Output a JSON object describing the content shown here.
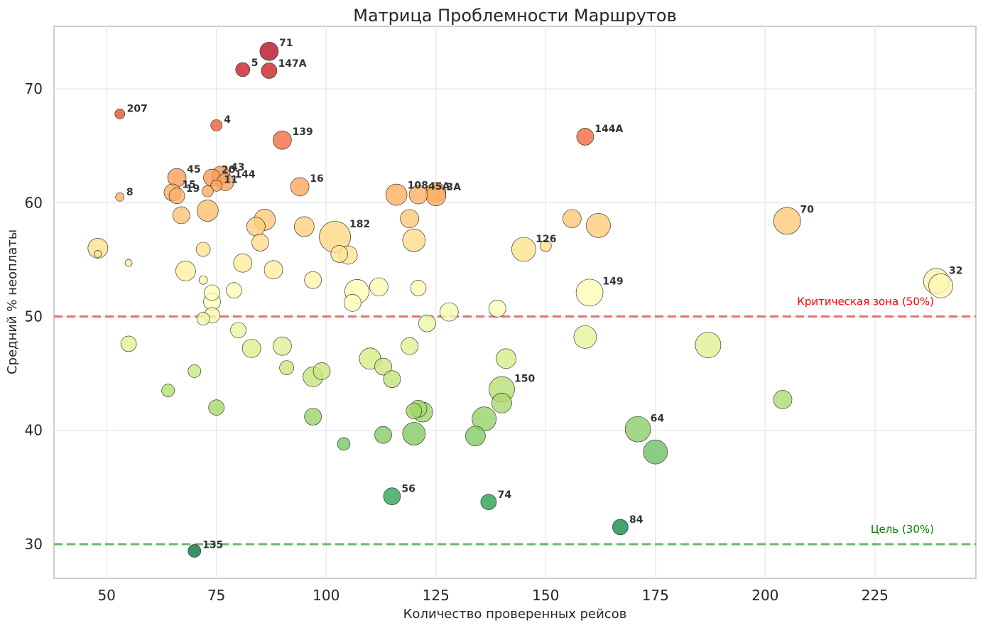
{
  "chart_data": {
    "type": "scatter",
    "title": "Матрица Проблемности Маршрутов",
    "xlabel": "Количество проверенных рейсов",
    "ylabel": "Средний % неоплаты",
    "xlim": [
      38,
      248
    ],
    "ylim": [
      27,
      75.5
    ],
    "xticks": [
      50,
      75,
      100,
      125,
      150,
      175,
      200,
      225
    ],
    "yticks": [
      30,
      40,
      50,
      60,
      70
    ],
    "grid": true,
    "colormap": "RdYlGn_r",
    "color_range": [
      28,
      75
    ],
    "reference_lines": [
      {
        "y": 50,
        "label": "Критическая зона (50%)",
        "color": "#e8585c"
      },
      {
        "y": 30,
        "label": "Цель (30%)",
        "color": "#4caf50"
      }
    ],
    "label_color_critical": "#ff0000",
    "label_color_target": "#008000",
    "points": [
      {
        "x": 87,
        "y": 73.3,
        "s": 13,
        "label": "71"
      },
      {
        "x": 81,
        "y": 71.7,
        "s": 10,
        "label": "5"
      },
      {
        "x": 87,
        "y": 71.6,
        "s": 11,
        "label": "147A"
      },
      {
        "x": 53,
        "y": 67.8,
        "s": 7,
        "label": "207"
      },
      {
        "x": 75,
        "y": 66.8,
        "s": 8,
        "label": "4"
      },
      {
        "x": 90,
        "y": 65.5,
        "s": 13,
        "label": "139"
      },
      {
        "x": 159,
        "y": 65.8,
        "s": 12,
        "label": "144A"
      },
      {
        "x": 66,
        "y": 62.2,
        "s": 13,
        "label": "45"
      },
      {
        "x": 74,
        "y": 62.2,
        "s": 12,
        "label": "20"
      },
      {
        "x": 76,
        "y": 62.4,
        "s": 13,
        "label": "43"
      },
      {
        "x": 77,
        "y": 61.8,
        "s": 12,
        "label": "144"
      },
      {
        "x": 75,
        "y": 61.5,
        "s": 8,
        "label": "11"
      },
      {
        "x": 73,
        "y": 61.0,
        "s": 8,
        "label": ""
      },
      {
        "x": 94,
        "y": 61.4,
        "s": 13,
        "label": "16"
      },
      {
        "x": 53,
        "y": 60.5,
        "s": 6,
        "label": "8"
      },
      {
        "x": 65,
        "y": 60.9,
        "s": 12,
        "label": "15"
      },
      {
        "x": 66,
        "y": 60.6,
        "s": 11,
        "label": "19"
      },
      {
        "x": 116,
        "y": 60.7,
        "s": 15,
        "label": "108"
      },
      {
        "x": 121,
        "y": 60.7,
        "s": 13,
        "label": "45A"
      },
      {
        "x": 125,
        "y": 60.9,
        "s": 14,
        "label": ""
      },
      {
        "x": 125,
        "y": 60.6,
        "s": 14,
        "label": "3A"
      },
      {
        "x": 67,
        "y": 58.9,
        "s": 12,
        "label": ""
      },
      {
        "x": 73,
        "y": 59.3,
        "s": 15,
        "label": ""
      },
      {
        "x": 86,
        "y": 58.5,
        "s": 15,
        "label": ""
      },
      {
        "x": 84,
        "y": 57.9,
        "s": 13,
        "label": ""
      },
      {
        "x": 95,
        "y": 57.9,
        "s": 14,
        "label": ""
      },
      {
        "x": 119,
        "y": 58.6,
        "s": 13,
        "label": ""
      },
      {
        "x": 156,
        "y": 58.6,
        "s": 13,
        "label": ""
      },
      {
        "x": 162,
        "y": 58.0,
        "s": 17,
        "label": ""
      },
      {
        "x": 205,
        "y": 58.4,
        "s": 19,
        "label": "70"
      },
      {
        "x": 102,
        "y": 57.0,
        "s": 22,
        "label": "182"
      },
      {
        "x": 120,
        "y": 56.7,
        "s": 16,
        "label": ""
      },
      {
        "x": 85,
        "y": 56.5,
        "s": 12,
        "label": ""
      },
      {
        "x": 48,
        "y": 56.0,
        "s": 14,
        "label": ""
      },
      {
        "x": 48,
        "y": 55.5,
        "s": 5,
        "label": ""
      },
      {
        "x": 72,
        "y": 55.9,
        "s": 10,
        "label": ""
      },
      {
        "x": 145,
        "y": 55.9,
        "s": 17,
        "label": "126"
      },
      {
        "x": 150,
        "y": 56.2,
        "s": 8,
        "label": ""
      },
      {
        "x": 103,
        "y": 55.5,
        "s": 12,
        "label": ""
      },
      {
        "x": 105,
        "y": 55.4,
        "s": 13,
        "label": ""
      },
      {
        "x": 55,
        "y": 54.7,
        "s": 5,
        "label": ""
      },
      {
        "x": 81,
        "y": 54.7,
        "s": 13,
        "label": ""
      },
      {
        "x": 68,
        "y": 54.0,
        "s": 14,
        "label": ""
      },
      {
        "x": 88,
        "y": 54.1,
        "s": 13,
        "label": ""
      },
      {
        "x": 72,
        "y": 53.2,
        "s": 6,
        "label": ""
      },
      {
        "x": 97,
        "y": 53.2,
        "s": 12,
        "label": ""
      },
      {
        "x": 239,
        "y": 53.1,
        "s": 18,
        "label": "32"
      },
      {
        "x": 240,
        "y": 52.7,
        "s": 17,
        "label": ""
      },
      {
        "x": 112,
        "y": 52.6,
        "s": 13,
        "label": ""
      },
      {
        "x": 121,
        "y": 52.5,
        "s": 11,
        "label": ""
      },
      {
        "x": 79,
        "y": 52.3,
        "s": 11,
        "label": ""
      },
      {
        "x": 107,
        "y": 52.2,
        "s": 17,
        "label": ""
      },
      {
        "x": 160,
        "y": 52.1,
        "s": 19,
        "label": "149"
      },
      {
        "x": 74,
        "y": 52.1,
        "s": 11,
        "label": ""
      },
      {
        "x": 74,
        "y": 51.3,
        "s": 12,
        "label": ""
      },
      {
        "x": 106,
        "y": 51.2,
        "s": 12,
        "label": ""
      },
      {
        "x": 139,
        "y": 50.7,
        "s": 12,
        "label": ""
      },
      {
        "x": 128,
        "y": 50.4,
        "s": 13,
        "label": ""
      },
      {
        "x": 74,
        "y": 50.1,
        "s": 11,
        "label": ""
      },
      {
        "x": 72,
        "y": 49.8,
        "s": 9,
        "label": ""
      },
      {
        "x": 123,
        "y": 49.4,
        "s": 12,
        "label": ""
      },
      {
        "x": 80,
        "y": 48.8,
        "s": 11,
        "label": ""
      },
      {
        "x": 159,
        "y": 48.2,
        "s": 16,
        "label": ""
      },
      {
        "x": 55,
        "y": 47.6,
        "s": 11,
        "label": ""
      },
      {
        "x": 187,
        "y": 47.5,
        "s": 18,
        "label": ""
      },
      {
        "x": 90,
        "y": 47.4,
        "s": 13,
        "label": ""
      },
      {
        "x": 119,
        "y": 47.4,
        "s": 12,
        "label": ""
      },
      {
        "x": 83,
        "y": 47.2,
        "s": 13,
        "label": ""
      },
      {
        "x": 110,
        "y": 46.3,
        "s": 15,
        "label": ""
      },
      {
        "x": 141,
        "y": 46.3,
        "s": 14,
        "label": ""
      },
      {
        "x": 113,
        "y": 45.6,
        "s": 12,
        "label": ""
      },
      {
        "x": 91,
        "y": 45.5,
        "s": 10,
        "label": ""
      },
      {
        "x": 70,
        "y": 45.2,
        "s": 9,
        "label": ""
      },
      {
        "x": 99,
        "y": 45.2,
        "s": 12,
        "label": ""
      },
      {
        "x": 97,
        "y": 44.7,
        "s": 14,
        "label": ""
      },
      {
        "x": 115,
        "y": 44.5,
        "s": 12,
        "label": ""
      },
      {
        "x": 140,
        "y": 43.6,
        "s": 18,
        "label": "150"
      },
      {
        "x": 64,
        "y": 43.5,
        "s": 9,
        "label": ""
      },
      {
        "x": 204,
        "y": 42.7,
        "s": 13,
        "label": ""
      },
      {
        "x": 140,
        "y": 42.4,
        "s": 14,
        "label": ""
      },
      {
        "x": 75,
        "y": 42.0,
        "s": 11,
        "label": ""
      },
      {
        "x": 121,
        "y": 41.9,
        "s": 12,
        "label": ""
      },
      {
        "x": 120,
        "y": 41.7,
        "s": 11,
        "label": ""
      },
      {
        "x": 122,
        "y": 41.6,
        "s": 14,
        "label": ""
      },
      {
        "x": 97,
        "y": 41.2,
        "s": 12,
        "label": ""
      },
      {
        "x": 136,
        "y": 41.0,
        "s": 17,
        "label": ""
      },
      {
        "x": 171,
        "y": 40.1,
        "s": 18,
        "label": "64"
      },
      {
        "x": 120,
        "y": 39.7,
        "s": 16,
        "label": ""
      },
      {
        "x": 113,
        "y": 39.6,
        "s": 12,
        "label": ""
      },
      {
        "x": 134,
        "y": 39.5,
        "s": 14,
        "label": ""
      },
      {
        "x": 104,
        "y": 38.8,
        "s": 9,
        "label": ""
      },
      {
        "x": 175,
        "y": 38.1,
        "s": 17,
        "label": ""
      },
      {
        "x": 115,
        "y": 34.2,
        "s": 12,
        "label": "56"
      },
      {
        "x": 137,
        "y": 33.7,
        "s": 11,
        "label": "74"
      },
      {
        "x": 167,
        "y": 31.5,
        "s": 11,
        "label": "84"
      },
      {
        "x": 70,
        "y": 29.4,
        "s": 9,
        "label": "135"
      }
    ]
  }
}
